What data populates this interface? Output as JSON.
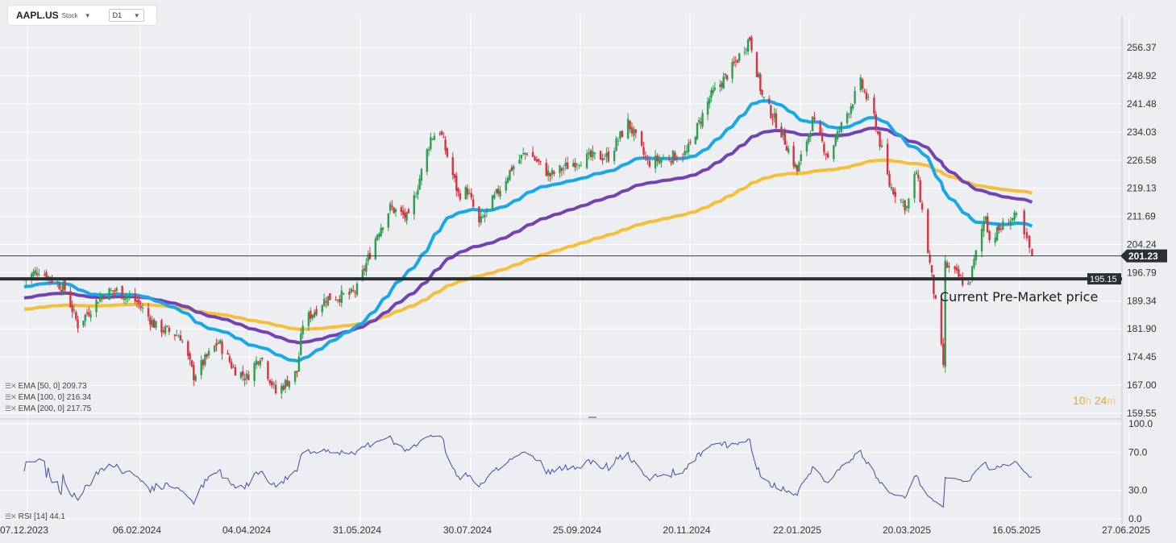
{
  "toolbar": {
    "symbol": "AAPL.US",
    "symbol_type": "Stock",
    "timeframe": "D1"
  },
  "indicators": {
    "ema50": "EMA [50, 0] 209.73",
    "ema100": "EMA [100, 0] 216.34",
    "ema200": "EMA [200, 0] 217.75",
    "rsi": "RSI [14] 44.1"
  },
  "countdown": {
    "hours": "10",
    "h": "h",
    "minutes": "24",
    "m": "m"
  },
  "colors": {
    "bull": "#2e9e4f",
    "bear": "#d8333e",
    "ema50": "#17a8ec",
    "ema100": "#7143b4",
    "ema200": "#f7be38",
    "rsi": "#3f4fa8",
    "level": "#2b2f36"
  },
  "chart_data": {
    "type": "candlestick",
    "symbol": "AAPL.US",
    "timeframe": "D1",
    "x_ticks": [
      "07.12.2023",
      "06.02.2024",
      "04.04.2024",
      "31.05.2024",
      "30.07.2024",
      "25.09.2024",
      "20.11.2024",
      "22.01.2025",
      "20.03.2025",
      "16.05.2025",
      "27.06.2025"
    ],
    "y_ticks": [
      "256.37",
      "248.92",
      "241.48",
      "234.03",
      "226.58",
      "219.13",
      "211.69",
      "204.24",
      "196.79",
      "189.34",
      "181.90",
      "174.45",
      "167.00",
      "159.55"
    ],
    "ylim": [
      159.55,
      260.0
    ],
    "close_approx": [
      [
        "07.12.2023",
        195.0
      ],
      [
        "15.12.2023",
        197.5
      ],
      [
        "29.12.2023",
        192.5
      ],
      [
        "05.01.2024",
        183.0
      ],
      [
        "19.01.2024",
        191.5
      ],
      [
        "26.01.2024",
        192.0
      ],
      [
        "06.02.2024",
        189.0
      ],
      [
        "16.02.2024",
        182.5
      ],
      [
        "29.02.2024",
        180.0
      ],
      [
        "07.03.2024",
        169.5
      ],
      [
        "20.03.2024",
        178.5
      ],
      [
        "28.03.2024",
        171.5
      ],
      [
        "04.04.2024",
        169.0
      ],
      [
        "11.04.2024",
        175.0
      ],
      [
        "19.04.2024",
        165.0
      ],
      [
        "30.04.2024",
        170.5
      ],
      [
        "03.05.2024",
        183.4
      ],
      [
        "15.05.2024",
        190.0
      ],
      [
        "28.05.2024",
        191.0
      ],
      [
        "31.05.2024",
        192.5
      ],
      [
        "11.06.2024",
        207.2
      ],
      [
        "18.06.2024",
        214.0
      ],
      [
        "28.06.2024",
        211.0
      ],
      [
        "10.07.2024",
        232.5
      ],
      [
        "15.07.2024",
        234.5
      ],
      [
        "25.07.2024",
        217.5
      ],
      [
        "30.07.2024",
        218.5
      ],
      [
        "05.08.2024",
        209.5
      ],
      [
        "22.08.2024",
        224.5
      ],
      [
        "30.08.2024",
        229.0
      ],
      [
        "11.09.2024",
        222.5
      ],
      [
        "25.09.2024",
        226.5
      ],
      [
        "04.10.2024",
        227.5
      ],
      [
        "11.10.2024",
        227.5
      ],
      [
        "21.10.2024",
        236.5
      ],
      [
        "31.10.2024",
        225.9
      ],
      [
        "20.11.2024",
        228.5
      ],
      [
        "03.12.2024",
        243.0
      ],
      [
        "16.12.2024",
        251.0
      ],
      [
        "26.12.2024",
        259.0
      ],
      [
        "02.01.2025",
        243.5
      ],
      [
        "13.01.2025",
        234.0
      ],
      [
        "22.01.2025",
        223.7
      ],
      [
        "30.01.2025",
        237.0
      ],
      [
        "07.02.2025",
        227.6
      ],
      [
        "24.02.2025",
        247.0
      ],
      [
        "03.03.2025",
        238.0
      ],
      [
        "11.03.2025",
        220.0
      ],
      [
        "20.03.2025",
        214.0
      ],
      [
        "25.03.2025",
        223.7
      ],
      [
        "04.04.2025",
        188.4
      ],
      [
        "08.04.2025",
        172.4
      ],
      [
        "09.04.2025",
        198.9
      ],
      [
        "21.04.2025",
        193.2
      ],
      [
        "30.04.2025",
        212.5
      ],
      [
        "02.05.2025",
        205.4
      ],
      [
        "12.05.2025",
        210.8
      ],
      [
        "16.05.2025",
        211.3
      ],
      [
        "22.05.2025",
        201.4
      ]
    ],
    "series": [
      {
        "name": "EMA [50, 0]",
        "last": 209.73
      },
      {
        "name": "EMA [100, 0]",
        "last": 216.34
      },
      {
        "name": "EMA [200, 0]",
        "last": 217.75
      }
    ],
    "price_labels": {
      "current": "201.23",
      "level": "195.15"
    },
    "annotation": "Current Pre-Market price",
    "rsi": {
      "label": "RSI [14] 44.1",
      "y_ticks": [
        "100.0",
        "70.0",
        "30.0",
        "0.0"
      ],
      "ylim": [
        0,
        100
      ]
    }
  }
}
